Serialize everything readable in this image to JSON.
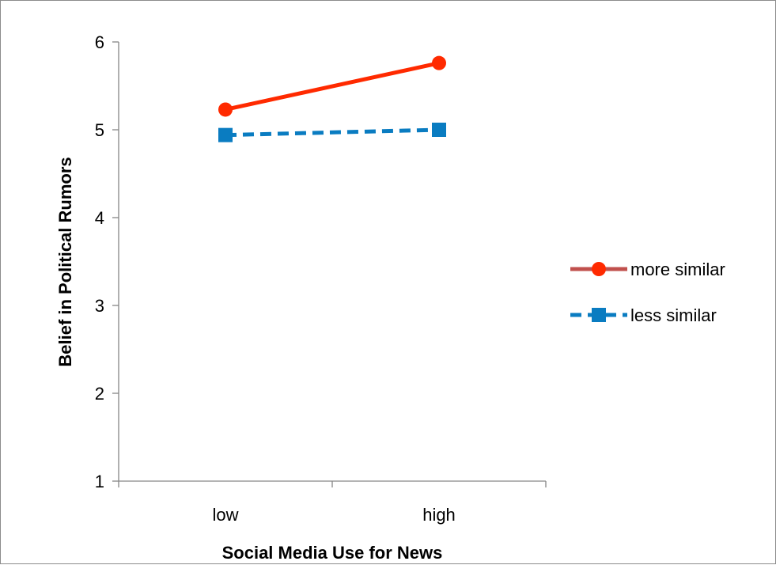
{
  "chart_data": {
    "type": "line",
    "title": "",
    "xlabel": "Social Media Use for News",
    "ylabel": "Belief in Political Rumors",
    "categories": [
      "low",
      "high"
    ],
    "ylim": [
      1,
      6
    ],
    "yticks": [
      1,
      2,
      3,
      4,
      5,
      6
    ],
    "grid": false,
    "legend_position": "right",
    "series": [
      {
        "name": "more similar",
        "values": [
          5.23,
          5.76
        ],
        "color": "#ff2a00",
        "line_style": "solid",
        "marker": "circle",
        "legend_line_color": "#c0504d"
      },
      {
        "name": "less similar",
        "values": [
          4.94,
          5.0
        ],
        "color": "#0a7cc1",
        "line_style": "dashed",
        "marker": "square",
        "legend_line_color": "#0a7cc1"
      }
    ]
  }
}
